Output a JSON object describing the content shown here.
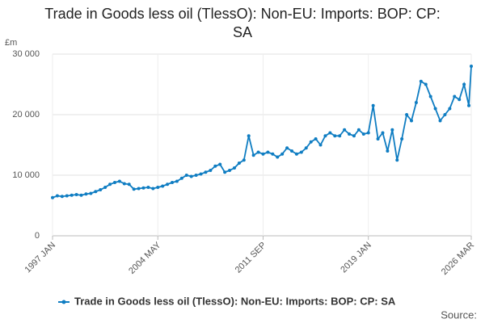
{
  "chart_data": {
    "type": "line",
    "title_lines": [
      "Trade in Goods less oil (TlessO): Non-EU: Imports: BOP: CP:",
      "SA"
    ],
    "y_unit": "£m",
    "source": "Source:",
    "x": [
      "1997 JAN",
      "1997 MAY",
      "1997 SEP",
      "1998 JAN",
      "1998 MAY",
      "1998 SEP",
      "1999 JAN",
      "1999 MAY",
      "1999 SEP",
      "2000 JAN",
      "2000 MAY",
      "2000 SEP",
      "2001 JAN",
      "2001 MAY",
      "2001 SEP",
      "2002 JAN",
      "2002 MAY",
      "2002 SEP",
      "2003 JAN",
      "2003 MAY",
      "2003 SEP",
      "2004 JAN",
      "2004 MAY",
      "2004 SEP",
      "2005 JAN",
      "2005 MAY",
      "2005 SEP",
      "2006 JAN",
      "2006 MAY",
      "2006 SEP",
      "2007 JAN",
      "2007 MAY",
      "2007 SEP",
      "2008 JAN",
      "2008 MAY",
      "2008 SEP",
      "2009 JAN",
      "2009 MAY",
      "2009 SEP",
      "2010 JAN",
      "2010 MAY",
      "2010 SEP",
      "2011 JAN",
      "2011 MAY",
      "2011 SEP",
      "2012 JAN",
      "2012 MAY",
      "2012 SEP",
      "2013 JAN",
      "2013 MAY",
      "2013 SEP",
      "2014 JAN",
      "2014 MAY",
      "2014 SEP",
      "2015 JAN",
      "2015 MAY",
      "2015 SEP",
      "2016 JAN",
      "2016 MAY",
      "2016 SEP",
      "2017 JAN",
      "2017 MAY",
      "2017 SEP",
      "2018 JAN",
      "2018 MAY",
      "2018 SEP",
      "2019 JAN",
      "2019 MAY",
      "2019 SEP",
      "2020 JAN",
      "2020 MAY",
      "2020 SEP",
      "2021 JAN",
      "2021 MAY",
      "2021 SEP",
      "2022 JAN",
      "2022 MAY",
      "2022 SEP",
      "2023 JAN",
      "2023 MAY",
      "2023 SEP",
      "2024 JAN",
      "2024 MAY",
      "2024 SEP",
      "2025 JAN",
      "2025 MAY",
      "2025 SEP",
      "2026 JAN",
      "2026 MAR"
    ],
    "series": [
      {
        "name": "Trade in Goods less oil (TlessO): Non-EU: Imports: BOP: CP: SA",
        "color": "#0f7dc2",
        "values": [
          6300,
          6600,
          6500,
          6600,
          6700,
          6800,
          6700,
          6900,
          7000,
          7300,
          7600,
          8000,
          8500,
          8800,
          9000,
          8600,
          8500,
          7700,
          7800,
          7900,
          8000,
          7800,
          8000,
          8200,
          8500,
          8800,
          9000,
          9500,
          10000,
          9800,
          10000,
          10200,
          10500,
          10800,
          11500,
          11800,
          10500,
          10800,
          11200,
          12000,
          12500,
          16500,
          13300,
          13800,
          13500,
          13800,
          13500,
          13000,
          13500,
          14500,
          14000,
          13500,
          13800,
          14500,
          15500,
          16000,
          15000,
          16500,
          17000,
          16500,
          16500,
          17500,
          16800,
          16500,
          17500,
          16800,
          17000,
          21500,
          16000,
          17000,
          14000,
          17500,
          12500,
          16000,
          20000,
          19000,
          22000,
          25500,
          25000,
          23000,
          21000,
          19000,
          20000,
          21000,
          23000,
          22500,
          25000,
          21500,
          28000
        ]
      }
    ],
    "ylim": [
      0,
      30000
    ],
    "yticks": [
      0,
      {
        "value": 10000,
        "label": "10 000"
      },
      {
        "value": 20000,
        "label": "20 000"
      },
      {
        "value": 30000,
        "label": "30 000"
      }
    ],
    "xticks": [
      "1997 JAN",
      "2004 MAY",
      "2011 SEP",
      "2019 JAN",
      "2026 MAR"
    ],
    "grid": true
  }
}
